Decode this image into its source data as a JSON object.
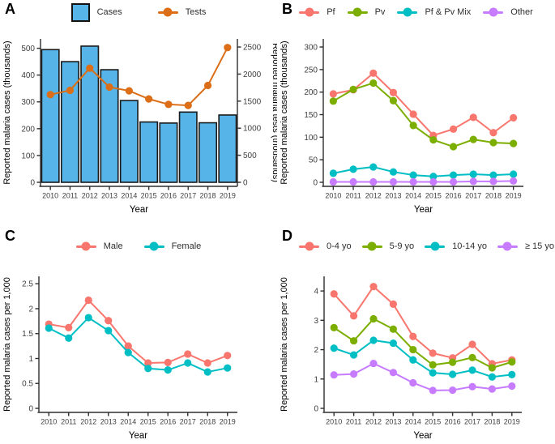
{
  "chart_data": [
    {
      "panel": "A",
      "type": "bar",
      "subtype": "bar+line-dual-axis",
      "categories": [
        "2010",
        "2011",
        "2012",
        "2013",
        "2014",
        "2015",
        "2016",
        "2017",
        "2018",
        "2019"
      ],
      "xlabel": "Year",
      "grid": false,
      "legend_position": "top",
      "left_axis": {
        "label": "Reported malaria cases (thousands)",
        "ticks": [
          0,
          100,
          200,
          300,
          400,
          500
        ],
        "max": 535
      },
      "right_axis": {
        "label": "Reported malaria tests (thousands)",
        "ticks": [
          0,
          500,
          1000,
          1500,
          2000,
          2500
        ],
        "max": 2650
      },
      "series": [
        {
          "name": "Cases",
          "kind": "bar",
          "axis": "left",
          "color": "#56B4E9",
          "border": "#1a1a1a",
          "values": [
            495,
            450,
            508,
            420,
            305,
            225,
            221,
            262,
            222,
            251
          ]
        },
        {
          "name": "Tests",
          "kind": "line",
          "axis": "right",
          "color": "#DB6E16",
          "values": [
            1620,
            1700,
            2110,
            1760,
            1690,
            1540,
            1440,
            1420,
            1790,
            2490
          ]
        }
      ]
    },
    {
      "panel": "B",
      "type": "line",
      "categories": [
        "2010",
        "2011",
        "2012",
        "2013",
        "2014",
        "2015",
        "2016",
        "2017",
        "2018",
        "2019"
      ],
      "xlabel": "Year",
      "grid": false,
      "legend_position": "top",
      "left_axis": {
        "label": "Reported malaria cases (thousands)",
        "ticks": [
          0,
          50,
          100,
          150,
          200,
          250,
          300
        ],
        "max": 318
      },
      "series": [
        {
          "name": "Pf",
          "kind": "line",
          "axis": "left",
          "color": "#F8766D",
          "values": [
            196,
            205,
            242,
            199,
            151,
            104,
            118,
            144,
            110,
            143
          ]
        },
        {
          "name": "Pv",
          "kind": "line",
          "axis": "left",
          "color": "#7CAE00",
          "values": [
            180,
            206,
            220,
            181,
            126,
            94,
            79,
            95,
            88,
            86
          ]
        },
        {
          "name": "Pf & Pv Mix",
          "kind": "line",
          "axis": "left",
          "color": "#00BFC4",
          "values": [
            20,
            29,
            34,
            23,
            16,
            13,
            16,
            18,
            16,
            18
          ]
        },
        {
          "name": "Other",
          "kind": "line",
          "axis": "left",
          "color": "#C77CFF",
          "values": [
            1,
            1,
            1,
            1,
            1,
            1,
            1,
            2,
            2,
            3
          ]
        }
      ]
    },
    {
      "panel": "C",
      "type": "line",
      "categories": [
        "2010",
        "2011",
        "2012",
        "2013",
        "2014",
        "2015",
        "2016",
        "2017",
        "2018",
        "2019"
      ],
      "xlabel": "Year",
      "grid": false,
      "legend_position": "top",
      "left_axis": {
        "label": "Reported malaria cases per 1,000",
        "ticks": [
          0,
          0.5,
          1,
          1.5,
          2,
          2.5
        ],
        "max": 2.65
      },
      "series": [
        {
          "name": "Male",
          "kind": "line",
          "axis": "left",
          "color": "#F8766D",
          "values": [
            1.69,
            1.62,
            2.17,
            1.76,
            1.25,
            0.91,
            0.92,
            1.09,
            0.91,
            1.06
          ]
        },
        {
          "name": "Female",
          "kind": "line",
          "axis": "left",
          "color": "#00BFC4",
          "values": [
            1.61,
            1.41,
            1.82,
            1.56,
            1.12,
            0.8,
            0.77,
            0.91,
            0.73,
            0.81
          ]
        }
      ]
    },
    {
      "panel": "D",
      "type": "line",
      "categories": [
        "2010",
        "2011",
        "2012",
        "2013",
        "2014",
        "2015",
        "2016",
        "2017",
        "2018",
        "2019"
      ],
      "xlabel": "Year",
      "grid": false,
      "legend_position": "top",
      "left_axis": {
        "label": "Reported malaria cases per 1,000",
        "ticks": [
          0,
          1,
          2,
          3,
          4
        ],
        "max": 4.5
      },
      "series": [
        {
          "name": "0-4 yo",
          "kind": "line",
          "axis": "left",
          "color": "#F8766D",
          "values": [
            3.9,
            3.15,
            4.15,
            3.55,
            2.45,
            1.88,
            1.72,
            2.18,
            1.52,
            1.65
          ]
        },
        {
          "name": "5-9 yo",
          "kind": "line",
          "axis": "left",
          "color": "#7CAE00",
          "values": [
            2.75,
            2.3,
            3.05,
            2.7,
            2.0,
            1.48,
            1.57,
            1.73,
            1.38,
            1.58
          ]
        },
        {
          "name": "10-14 yo",
          "kind": "line",
          "axis": "left",
          "color": "#00BFC4",
          "values": [
            2.05,
            1.82,
            2.32,
            2.22,
            1.65,
            1.21,
            1.16,
            1.3,
            1.07,
            1.15
          ]
        },
        {
          "name": "≥ 15 yo",
          "kind": "line",
          "axis": "left",
          "color": "#C77CFF",
          "values": [
            1.14,
            1.17,
            1.53,
            1.22,
            0.87,
            0.61,
            0.62,
            0.74,
            0.66,
            0.76
          ]
        }
      ]
    }
  ]
}
